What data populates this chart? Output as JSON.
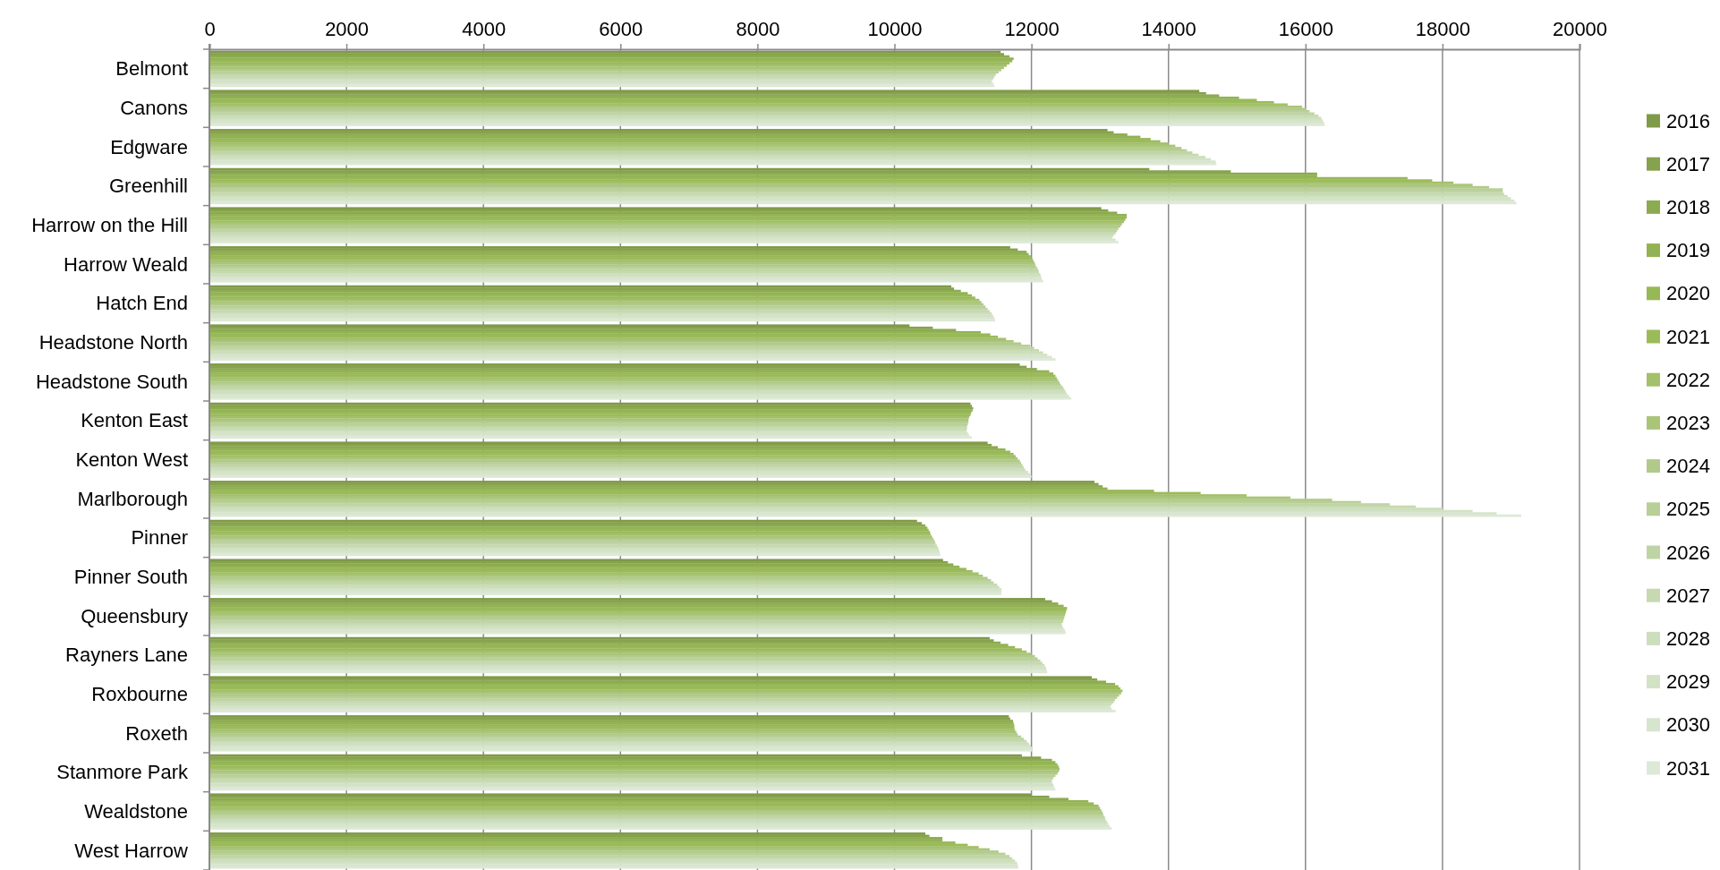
{
  "chart_data": {
    "type": "bar",
    "orientation": "horizontal",
    "categories": [
      "Belmont",
      "Canons",
      "Edgware",
      "Greenhill",
      "Harrow on the Hill",
      "Harrow Weald",
      "Hatch End",
      "Headstone North",
      "Headstone South",
      "Kenton East",
      "Kenton West",
      "Marlborough",
      "Pinner",
      "Pinner South",
      "Queensbury",
      "Rayners Lane",
      "Roxbourne",
      "Roxeth",
      "Stanmore Park",
      "Wealdstone",
      "West Harrow"
    ],
    "xlim": [
      0,
      20000
    ],
    "xticks": [
      0,
      2000,
      4000,
      6000,
      8000,
      10000,
      12000,
      14000,
      16000,
      18000,
      20000
    ],
    "grid": "x",
    "legend": "right",
    "series": [
      {
        "name": "2016",
        "color": "#7f9a48",
        "values": [
          11550,
          14450,
          13110,
          13720,
          13020,
          11690,
          10830,
          10220,
          11830,
          11110,
          11360,
          12920,
          10330,
          10710,
          12200,
          11390,
          12880,
          11670,
          11860,
          12000,
          10450
        ]
      },
      {
        "name": "2017",
        "color": "#86a24c",
        "values": [
          11600,
          14550,
          13200,
          14910,
          13120,
          11800,
          10870,
          10560,
          11930,
          11130,
          11420,
          12980,
          10400,
          10780,
          12300,
          11450,
          12960,
          11690,
          12140,
          12260,
          10510
        ]
      },
      {
        "name": "2018",
        "color": "#8cab50",
        "values": [
          11680,
          14740,
          13400,
          16170,
          13250,
          11930,
          10970,
          10900,
          12080,
          11150,
          11510,
          13040,
          10450,
          10860,
          12390,
          11550,
          13090,
          11730,
          12300,
          12540,
          10700
        ]
      },
      {
        "name": "2019",
        "color": "#92b254",
        "values": [
          11740,
          15030,
          13590,
          16170,
          13390,
          11960,
          11070,
          11260,
          12260,
          11140,
          11620,
          13110,
          10480,
          10950,
          12470,
          11660,
          13220,
          11740,
          12350,
          12830,
          10700
        ]
      },
      {
        "name": "2020",
        "color": "#97b857",
        "values": [
          11720,
          15290,
          13740,
          17490,
          13390,
          11990,
          11130,
          11400,
          12320,
          11120,
          11690,
          13790,
          10500,
          11050,
          12520,
          11760,
          13270,
          11750,
          12380,
          12910,
          10890
        ]
      },
      {
        "name": "2021",
        "color": "#9bbb59",
        "values": [
          11680,
          15540,
          13880,
          17850,
          13370,
          12010,
          11180,
          11510,
          12350,
          11110,
          11740,
          14470,
          10520,
          11140,
          12510,
          11860,
          13300,
          11750,
          12400,
          12980,
          11070
        ]
      },
      {
        "name": "2022",
        "color": "#a3c06a",
        "values": [
          11640,
          15740,
          14000,
          18160,
          13350,
          12030,
          11240,
          11630,
          12370,
          11090,
          11770,
          15140,
          10530,
          11230,
          12500,
          11930,
          13330,
          11760,
          12410,
          13000,
          11230
        ]
      },
      {
        "name": "2023",
        "color": "#aac57a",
        "values": [
          11600,
          15950,
          14100,
          18440,
          13320,
          12050,
          11270,
          11740,
          12390,
          11080,
          11800,
          15780,
          10550,
          11290,
          12490,
          12000,
          13310,
          11780,
          12400,
          13020,
          11390
        ]
      },
      {
        "name": "2024",
        "color": "#b1ca89",
        "values": [
          11560,
          16010,
          14190,
          18680,
          13300,
          12060,
          11300,
          11850,
          12410,
          11080,
          11830,
          16390,
          10570,
          11360,
          12480,
          12050,
          13280,
          11800,
          12380,
          13040,
          11520
        ]
      },
      {
        "name": "2025",
        "color": "#b8cf97",
        "values": [
          11520,
          16060,
          14270,
          18880,
          13270,
          12080,
          11330,
          11980,
          12430,
          11070,
          11850,
          16810,
          10590,
          11410,
          12470,
          12090,
          13250,
          11850,
          12350,
          13050,
          11620
        ]
      },
      {
        "name": "2026",
        "color": "#bfd4a4",
        "values": [
          11480,
          16130,
          14350,
          18880,
          13250,
          12100,
          11360,
          12040,
          12460,
          11060,
          11870,
          17230,
          10600,
          11450,
          12460,
          12130,
          13220,
          11890,
          12320,
          13070,
          11680
        ]
      },
      {
        "name": "2027",
        "color": "#c6d9b0",
        "values": [
          11460,
          16190,
          14440,
          18900,
          13230,
          12110,
          11390,
          12110,
          12480,
          11060,
          11890,
          17610,
          10620,
          11500,
          12440,
          12160,
          13200,
          11930,
          12300,
          13080,
          11720
        ]
      },
      {
        "name": "2028",
        "color": "#ccdebb",
        "values": [
          11440,
          16230,
          14540,
          18950,
          13200,
          12130,
          11420,
          12170,
          12500,
          11050,
          11910,
          18000,
          10640,
          11530,
          12450,
          12190,
          13170,
          11960,
          12300,
          13100,
          11760
        ]
      },
      {
        "name": "2029",
        "color": "#d3e2c5",
        "values": [
          11420,
          16250,
          14620,
          19000,
          13180,
          12140,
          11440,
          12230,
          12520,
          11070,
          11950,
          18440,
          10650,
          11560,
          12470,
          12210,
          13150,
          11990,
          12320,
          13120,
          11790
        ]
      },
      {
        "name": "2030",
        "color": "#d8e5ce",
        "values": [
          11440,
          16270,
          14690,
          19050,
          13230,
          12150,
          11460,
          12300,
          12550,
          11090,
          11980,
          18790,
          10660,
          11560,
          12490,
          12220,
          13170,
          12010,
          12330,
          13140,
          11800
        ]
      },
      {
        "name": "2031",
        "color": "#dde9d6",
        "values": [
          11460,
          16280,
          14700,
          19080,
          13270,
          12170,
          11470,
          12350,
          12580,
          11130,
          12000,
          19150,
          10670,
          11560,
          12500,
          12230,
          13230,
          12010,
          12350,
          13170,
          11810
        ]
      }
    ]
  }
}
